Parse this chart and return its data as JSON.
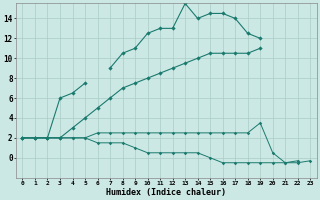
{
  "xlabel": "Humidex (Indice chaleur)",
  "x_values": [
    0,
    1,
    2,
    3,
    4,
    5,
    6,
    7,
    8,
    9,
    10,
    11,
    12,
    13,
    14,
    15,
    16,
    17,
    18,
    19,
    20,
    21,
    22,
    23
  ],
  "line1": [
    2,
    2,
    2,
    6,
    6.5,
    7.5,
    null,
    9,
    10.5,
    11,
    12.5,
    13,
    13,
    15.5,
    14,
    14.5,
    14.5,
    14,
    12.5,
    12,
    null,
    null,
    null,
    null
  ],
  "line3": [
    2,
    2,
    2,
    2,
    3,
    4,
    5,
    6,
    7,
    7.5,
    8,
    8.5,
    9,
    9.5,
    10,
    10.5,
    10.5,
    10.5,
    10.5,
    11,
    null,
    null,
    null,
    null
  ],
  "line4": [
    2,
    2,
    2,
    2,
    2,
    2,
    2.5,
    2.5,
    2.5,
    2.5,
    2.5,
    2.5,
    2.5,
    2.5,
    2.5,
    2.5,
    2.5,
    2.5,
    2.5,
    3.5,
    0.5,
    -0.5,
    -0.3,
    null
  ],
  "line5": [
    2,
    2,
    2,
    2,
    2,
    2,
    1.5,
    1.5,
    1.5,
    1,
    0.5,
    0.5,
    0.5,
    0.5,
    0.5,
    0,
    -0.5,
    -0.5,
    -0.5,
    -0.5,
    -0.5,
    -0.5,
    -0.5,
    -0.3
  ],
  "color": "#1a7a6e",
  "background": "#cce8e4",
  "grid_color": "#aaccc8",
  "ylim": [
    -2,
    15.5
  ],
  "xlim": [
    -0.5,
    23.5
  ],
  "yticks": [
    0,
    2,
    4,
    6,
    8,
    10,
    12,
    14
  ],
  "xticks": [
    0,
    1,
    2,
    3,
    4,
    5,
    6,
    7,
    8,
    9,
    10,
    11,
    12,
    13,
    14,
    15,
    16,
    17,
    18,
    19,
    20,
    21,
    22,
    23
  ]
}
